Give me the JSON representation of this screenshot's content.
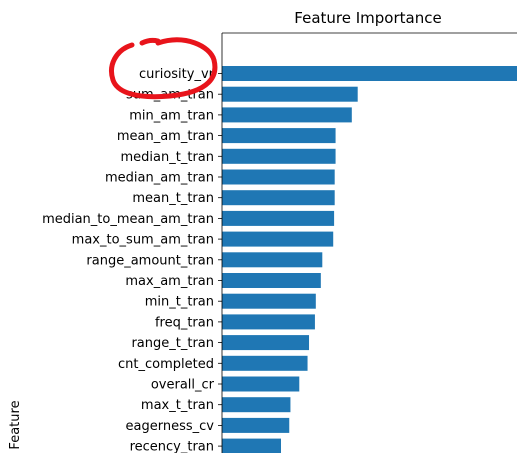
{
  "chart_data": {
    "type": "bar",
    "orientation": "horizontal",
    "title": "Feature Importance",
    "xlabel": "",
    "ylabel": "Feature",
    "categories": [
      "curiosity_vr",
      "sum_am_tran",
      "min_am_tran",
      "mean_am_tran",
      "median_t_tran",
      "median_am_tran",
      "mean_t_tran",
      "median_to_mean_am_tran",
      "max_to_sum_am_tran",
      "range_amount_tran",
      "max_am_tran",
      "min_t_tran",
      "freq_tran",
      "range_t_tran",
      "cnt_completed",
      "overall_cr",
      "max_t_tran",
      "eagerness_cv",
      "recency_tran"
    ],
    "values": [
      1.0,
      0.46,
      0.44,
      0.385,
      0.385,
      0.382,
      0.382,
      0.38,
      0.377,
      0.34,
      0.335,
      0.318,
      0.315,
      0.295,
      0.29,
      0.262,
      0.232,
      0.228,
      0.2
    ],
    "xlim": [
      0,
      1.0
    ],
    "bar_color": "#1f77b4",
    "grid": false,
    "annotations": [
      {
        "type": "hand-drawn circle",
        "target": "curiosity_vr",
        "color": "#e8141b"
      }
    ]
  }
}
